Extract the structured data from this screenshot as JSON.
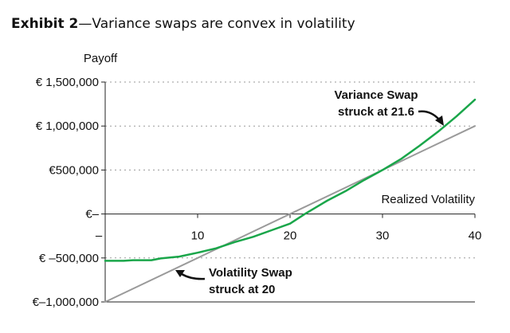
{
  "chart_data": {
    "type": "line",
    "title_prefix": "Exhibit 2",
    "title_dash": "—",
    "title_rest": "Variance swaps are convex in volatility",
    "ylabel": "Payoff",
    "xlabel": "Realized Volatility",
    "xlim": [
      0,
      40
    ],
    "ylim": [
      -1000000,
      1500000
    ],
    "x_ticks": [
      10,
      20,
      30,
      40
    ],
    "x_tick_labels": [
      "10",
      "20",
      "30",
      "40"
    ],
    "x_zero_label": "–",
    "y_ticks": [
      1500000,
      1000000,
      500000,
      0,
      -500000,
      -1000000
    ],
    "y_tick_labels": [
      "€ 1,500,000",
      "€ 1,000,000",
      "€500,000",
      "€–",
      "€ –500,000",
      "€–1,000,000"
    ],
    "grid": "horizontal-dashed",
    "series": [
      {
        "color": "#9a9a9a",
        "x": [
          0,
          40
        ],
        "y": [
          -1000000,
          1000000
        ]
      },
      {
        "color": "#1aa64a",
        "x": [
          0,
          2,
          3,
          4,
          5,
          6,
          7,
          8,
          10,
          12,
          14,
          16,
          18,
          20,
          21.6,
          24,
          26,
          28,
          30,
          32,
          34,
          36,
          38,
          40
        ],
        "y": [
          -533000,
          -533000,
          -525000,
          -525000,
          -525000,
          -505000,
          -495000,
          -485000,
          -440000,
          -390000,
          -320000,
          -260000,
          -185000,
          -110000,
          0,
          150000,
          260000,
          385000,
          500000,
          625000,
          775000,
          935000,
          1110000,
          1300000
        ]
      }
    ],
    "annotations": [
      {
        "lines": [
          "Variance Swap",
          "struck at 21.6"
        ]
      },
      {
        "lines": [
          "Volatility Swap",
          "struck at 20"
        ]
      }
    ]
  }
}
